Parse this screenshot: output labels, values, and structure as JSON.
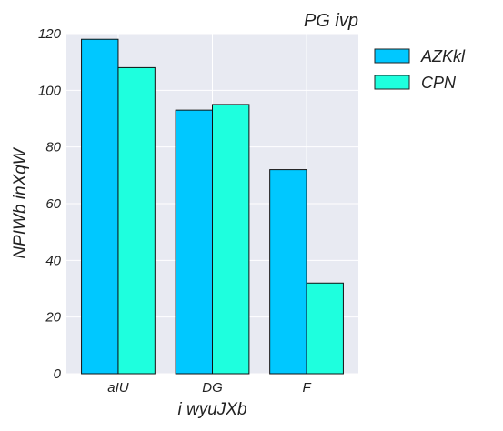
{
  "chart_data": {
    "type": "bar",
    "title": "PG ivp",
    "xlabel": "i wyuJXb",
    "ylabel": "NPIWb  inXqW",
    "categories": [
      "aIU",
      "DG",
      "F"
    ],
    "series": [
      {
        "name": "AZKkl",
        "values": [
          118,
          93,
          72
        ],
        "color": "#00c8ff"
      },
      {
        "name": "CPN",
        "values": [
          108,
          95,
          32
        ],
        "color": "#1effde"
      }
    ],
    "ylim": [
      0,
      120
    ],
    "yticks": [
      0,
      20,
      40,
      60,
      80,
      100,
      120
    ],
    "grid": true,
    "legend_position": "outside-right-top",
    "plot_background": "#e8eaf2",
    "grid_color": "#ffffff"
  }
}
